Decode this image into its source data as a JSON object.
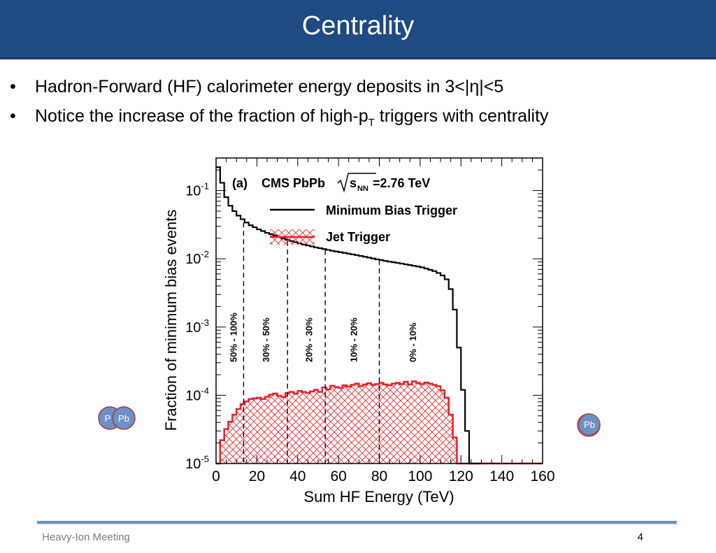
{
  "header": {
    "title": "Centrality"
  },
  "bullets": [
    {
      "marker": "•",
      "text": "Hadron-Forward (HF) calorimeter energy deposits in 3<|η|<5"
    },
    {
      "marker": "•",
      "text_before": "Notice the increase of the fraction of high-p",
      "subscript": "T",
      "text_after": " triggers with centrality"
    }
  ],
  "footer": {
    "left": "Heavy-Ion Meeting",
    "page_number": "4"
  },
  "nuclei": {
    "left_label_a": "P",
    "left_label_b": "Pb",
    "right_label": "Pb"
  },
  "colors": {
    "header": "#1f4a82",
    "jet": "#ee1c25",
    "minbias": "#000000",
    "nucleus_fill": "#6e90c8",
    "nucleus_ring": "#a23a3a"
  },
  "chart_data": {
    "type": "histogram",
    "panel_label": "(a)",
    "annotation_text": "CMS PbPb",
    "energy_label": "=2.76 TeV",
    "sqrt_label": "s",
    "sqrt_sub": "NN",
    "xlabel": "Sum HF Energy (TeV)",
    "ylabel": "Fraction of minimum bias events",
    "xlim": [
      0,
      160
    ],
    "ylim": [
      1e-05,
      0.3
    ],
    "yscale": "log",
    "x_ticks": [
      0,
      20,
      40,
      60,
      80,
      100,
      120,
      140,
      160
    ],
    "y_ticks": [
      {
        "value": 1e-05,
        "base": "10",
        "exp": "-5"
      },
      {
        "value": 0.0001,
        "base": "10",
        "exp": "-4"
      },
      {
        "value": 0.001,
        "base": "10",
        "exp": "-3"
      },
      {
        "value": 0.01,
        "base": "10",
        "exp": "-2"
      },
      {
        "value": 0.1,
        "base": "10",
        "exp": "-1"
      }
    ],
    "legend_placement": "top-right",
    "series": [
      {
        "name": "Minimum Bias Trigger",
        "style": "line",
        "x": [
          0,
          2,
          4,
          6,
          8,
          10,
          12,
          14,
          16,
          18,
          20,
          22,
          24,
          26,
          28,
          30,
          32,
          34,
          36,
          38,
          40,
          42,
          44,
          46,
          48,
          50,
          52,
          54,
          56,
          58,
          60,
          62,
          64,
          66,
          68,
          70,
          72,
          74,
          76,
          78,
          80,
          82,
          84,
          86,
          88,
          90,
          92,
          94,
          96,
          98,
          100,
          102,
          104,
          106,
          108,
          110,
          112,
          114,
          116,
          118,
          120,
          122,
          124,
          126,
          128
        ],
        "y": [
          0.22,
          0.13,
          0.08,
          0.06,
          0.05,
          0.043,
          0.038,
          0.034,
          0.031,
          0.029,
          0.027,
          0.0255,
          0.024,
          0.023,
          0.022,
          0.021,
          0.0198,
          0.019,
          0.0182,
          0.0175,
          0.0168,
          0.0162,
          0.0157,
          0.0152,
          0.0147,
          0.0143,
          0.0139,
          0.0135,
          0.0131,
          0.0128,
          0.0125,
          0.0122,
          0.0119,
          0.0116,
          0.0113,
          0.011,
          0.0107,
          0.0104,
          0.0101,
          0.0098,
          0.0096,
          0.0093,
          0.0091,
          0.0089,
          0.0087,
          0.0085,
          0.0083,
          0.0081,
          0.0079,
          0.0077,
          0.0075,
          0.0072,
          0.0069,
          0.0066,
          0.0062,
          0.0057,
          0.005,
          0.0036,
          0.0018,
          0.0005,
          0.00012,
          3e-05,
          1e-05,
          1e-05,
          1e-05
        ]
      },
      {
        "name": "Jet Trigger",
        "style": "hatched-fill",
        "x": [
          0,
          2,
          4,
          6,
          8,
          10,
          12,
          14,
          16,
          18,
          20,
          22,
          24,
          26,
          28,
          30,
          32,
          34,
          36,
          38,
          40,
          42,
          44,
          46,
          48,
          50,
          52,
          54,
          56,
          58,
          60,
          62,
          64,
          66,
          68,
          70,
          72,
          74,
          76,
          78,
          80,
          82,
          84,
          86,
          88,
          90,
          92,
          94,
          96,
          98,
          100,
          102,
          104,
          106,
          108,
          110,
          112,
          114,
          116,
          118,
          120,
          122,
          124,
          126,
          128
        ],
        "y": [
          1e-05,
          2.2e-05,
          3.2e-05,
          4.1e-05,
          5.2e-05,
          6.3e-05,
          7.4e-05,
          8.1e-05,
          8.8e-05,
          9e-05,
          9.2e-05,
          8.8e-05,
          9.5e-05,
          0.000102,
          0.000106,
          9.8e-05,
          9.4e-05,
          0.000108,
          0.000112,
          0.000106,
          0.000116,
          0.000112,
          0.000108,
          0.000114,
          0.00012,
          0.000112,
          0.00013,
          0.000122,
          0.000138,
          0.000132,
          0.000128,
          0.00014,
          0.000134,
          0.000142,
          0.000148,
          0.000136,
          0.000144,
          0.00015,
          0.000142,
          0.000146,
          0.000152,
          0.000144,
          0.00014,
          0.000148,
          0.000152,
          0.000146,
          0.000158,
          0.000144,
          0.00016,
          0.000152,
          0.000146,
          0.000154,
          0.000148,
          0.000142,
          0.000136,
          0.000118,
          9.2e-05,
          5.2e-05,
          2.4e-05,
          1e-05,
          1e-05,
          1e-05,
          1e-05,
          1e-05,
          1e-05
        ]
      }
    ],
    "centrality_boundaries": [
      13.5,
      35,
      53.5,
      80
    ],
    "centrality_labels": [
      {
        "label": "50% - 100%",
        "x": 8
      },
      {
        "label": "30% - 50%",
        "x": 24
      },
      {
        "label": "20% - 30%",
        "x": 45
      },
      {
        "label": "10% - 20%",
        "x": 67
      },
      {
        "label": "0% - 10%",
        "x": 96
      }
    ]
  }
}
